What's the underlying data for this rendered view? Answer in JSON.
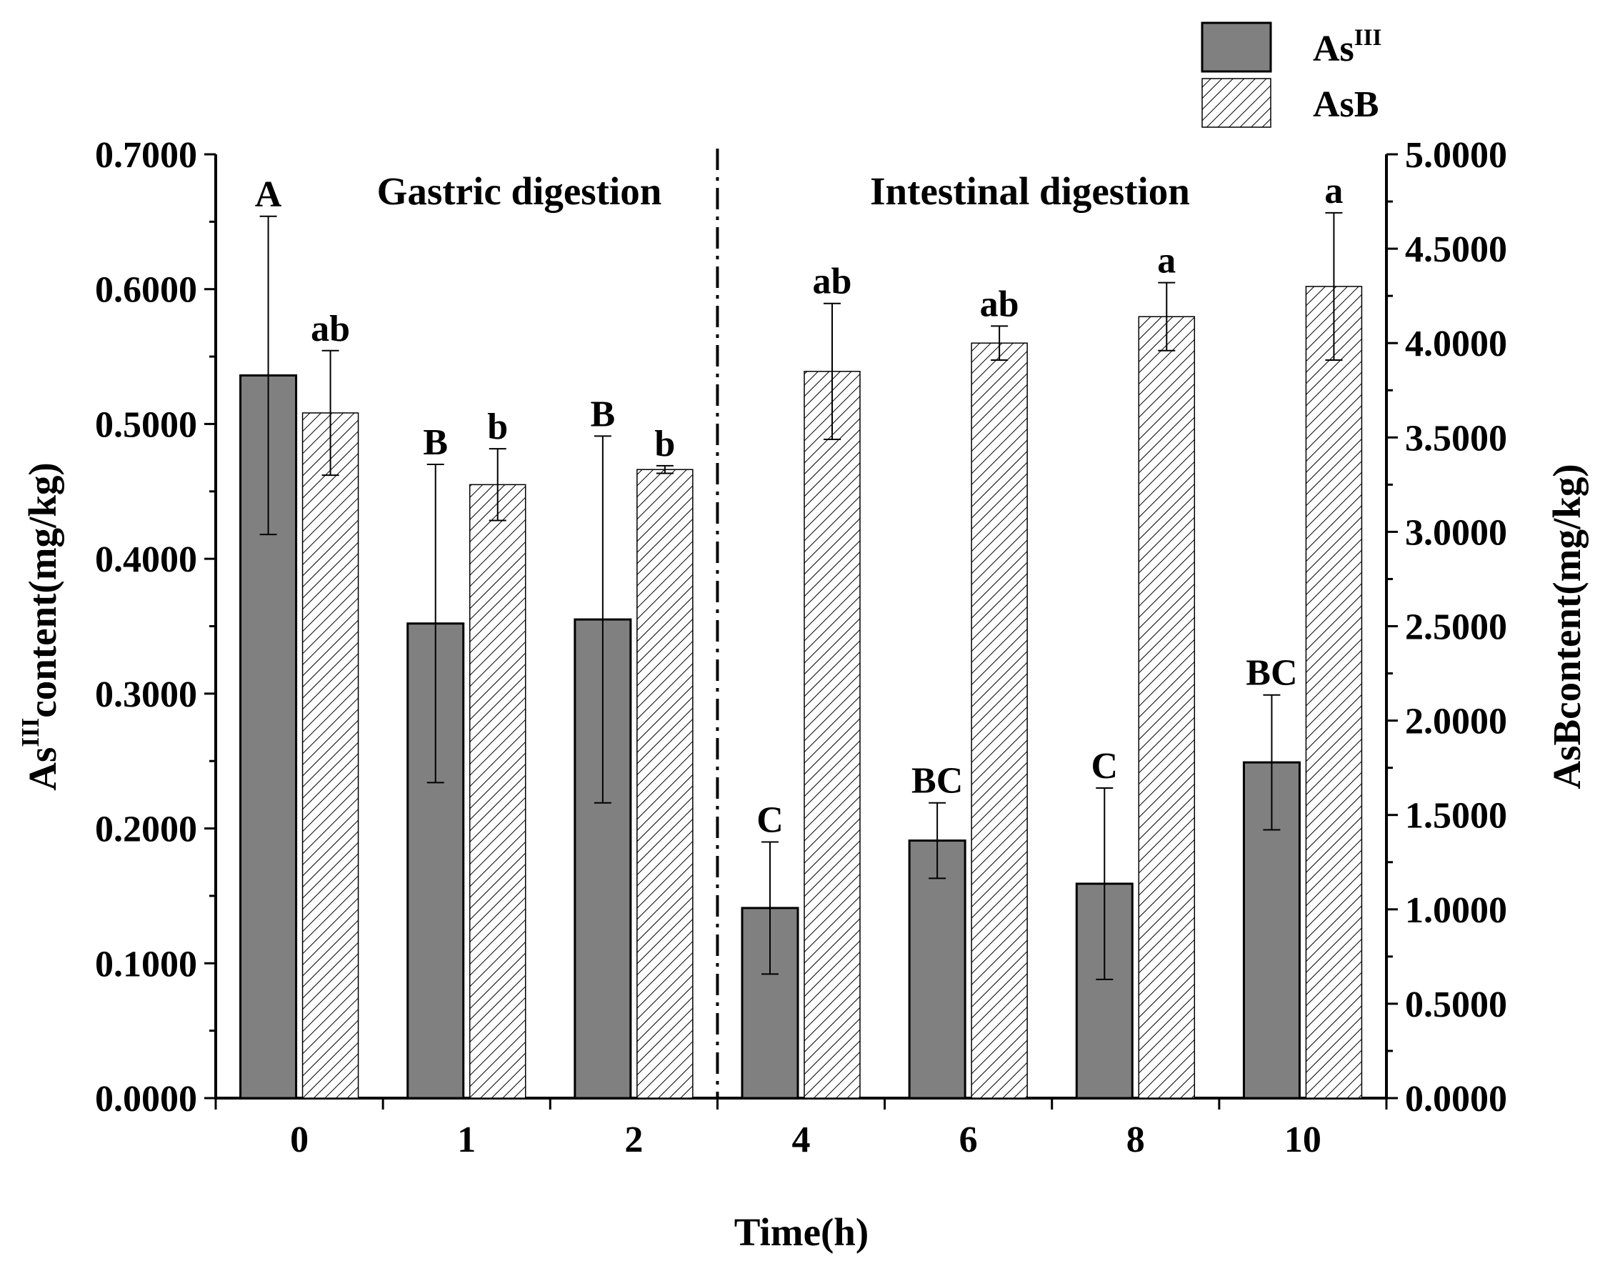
{
  "chart_data": {
    "type": "bar",
    "title": "",
    "xlabel": "Time(h)",
    "ylabel_left": {
      "base": "As",
      "sup": "III",
      "rest": "content(mg/kg)"
    },
    "ylabel_right": "AsBcontent(mg/kg)",
    "categories": [
      "0",
      "1",
      "2",
      "4",
      "6",
      "8",
      "10"
    ],
    "ylim_left": [
      0,
      0.7
    ],
    "ylim_right": [
      0,
      5.0
    ],
    "left_ticks": [
      "0.0000",
      "0.1000",
      "0.2000",
      "0.3000",
      "0.4000",
      "0.5000",
      "0.6000",
      "0.7000"
    ],
    "right_ticks": [
      "0.0000",
      "0.5000",
      "1.0000",
      "1.5000",
      "2.0000",
      "2.5000",
      "3.0000",
      "3.5000",
      "4.0000",
      "4.5000",
      "5.0000"
    ],
    "series": [
      {
        "name": "AsIII",
        "legend_base": "As",
        "legend_sup": "III",
        "axis": "left",
        "color": "#808080",
        "pattern": "solid",
        "values": [
          0.536,
          0.352,
          0.355,
          0.141,
          0.191,
          0.159,
          0.249
        ],
        "errors": [
          0.118,
          0.118,
          0.136,
          0.049,
          0.028,
          0.071,
          0.05
        ],
        "letters": [
          "A",
          "B",
          "B",
          "C",
          "BC",
          "C",
          "BC"
        ]
      },
      {
        "name": "AsB",
        "legend_base": "AsB",
        "legend_sup": "",
        "axis": "right",
        "color": "#ffffff",
        "pattern": "hatch",
        "values": [
          3.63,
          3.25,
          3.33,
          3.85,
          4.0,
          4.14,
          4.3
        ],
        "errors": [
          0.33,
          0.19,
          0.02,
          0.36,
          0.09,
          0.18,
          0.39
        ],
        "letters": [
          "ab",
          "b",
          "b",
          "ab",
          "ab",
          "a",
          "a"
        ]
      }
    ],
    "annotations": [
      "Gastric digestion",
      "Intestinal digestion"
    ],
    "divider_after_category": 2,
    "legend_position": "top-right"
  }
}
